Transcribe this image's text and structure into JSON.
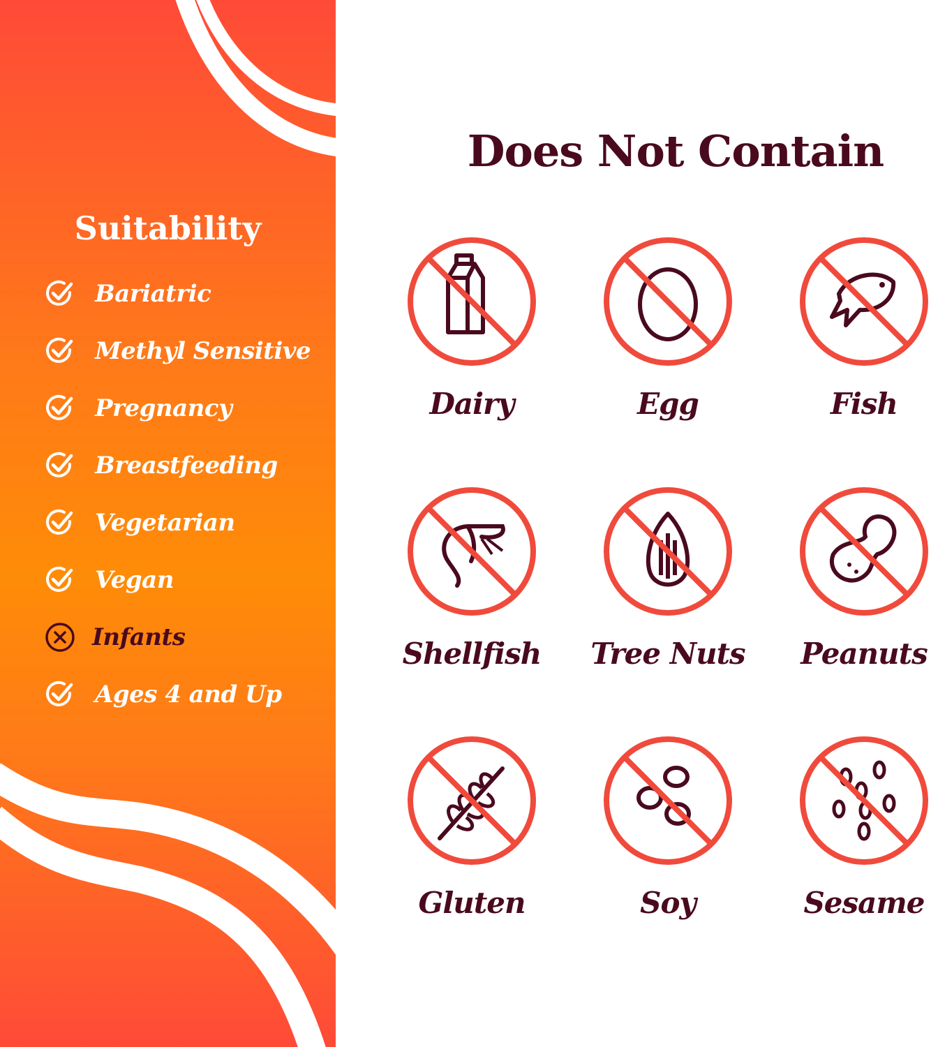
{
  "colors": {
    "accent": "#f04a3c",
    "text": "#4a0a1e",
    "orange": "#ff8c08",
    "red": "#ff4a38"
  },
  "suitability": {
    "title": "Suitability",
    "items": [
      {
        "label": "Bariatric",
        "status": "suitable",
        "icon": "check-circle-icon"
      },
      {
        "label": "Methyl Sensitive",
        "status": "suitable",
        "icon": "check-circle-icon"
      },
      {
        "label": "Pregnancy",
        "status": "suitable",
        "icon": "check-circle-icon"
      },
      {
        "label": "Breastfeeding",
        "status": "suitable",
        "icon": "check-circle-icon"
      },
      {
        "label": "Vegetarian",
        "status": "suitable",
        "icon": "check-circle-icon"
      },
      {
        "label": "Vegan",
        "status": "suitable",
        "icon": "check-circle-icon"
      },
      {
        "label": "Infants",
        "status": "not-suitable",
        "icon": "x-circle-icon"
      },
      {
        "label": "Ages 4 and Up",
        "status": "suitable",
        "icon": "check-circle-icon"
      }
    ]
  },
  "does_not_contain": {
    "title": "Does Not Contain",
    "items": [
      {
        "label": "Dairy",
        "icon": "milk-carton-icon"
      },
      {
        "label": "Egg",
        "icon": "egg-icon"
      },
      {
        "label": "Fish",
        "icon": "fish-icon"
      },
      {
        "label": "Shellfish",
        "icon": "shrimp-icon"
      },
      {
        "label": "Tree Nuts",
        "icon": "almond-icon"
      },
      {
        "label": "Peanuts",
        "icon": "peanut-icon"
      },
      {
        "label": "Gluten",
        "icon": "wheat-icon"
      },
      {
        "label": "Soy",
        "icon": "soybean-icon"
      },
      {
        "label": "Sesame",
        "icon": "sesame-seeds-icon"
      }
    ]
  }
}
